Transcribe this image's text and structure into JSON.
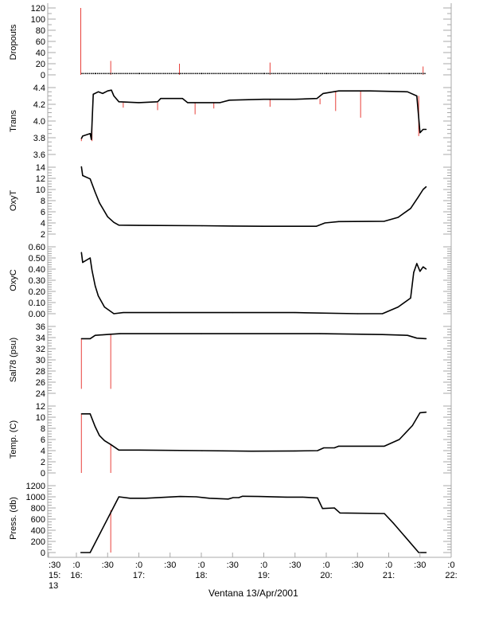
{
  "chart_data": {
    "type": "line",
    "title": "",
    "xlabel": "Ventana 13/Apr/2001",
    "x_units": "hours (decimal, 13/Apr/2001)",
    "xlim": [
      15.5,
      22.0
    ],
    "x_ticks": [
      {
        "t": 15.5,
        "minute": ":30",
        "hour": "15:",
        "day": "13"
      },
      {
        "t": 16.0,
        "minute": ":0",
        "hour": "16:"
      },
      {
        "t": 16.5,
        "minute": ":30"
      },
      {
        "t": 17.0,
        "minute": ":0",
        "hour": "17:"
      },
      {
        "t": 17.5,
        "minute": ":30"
      },
      {
        "t": 18.0,
        "minute": ":0",
        "hour": "18:"
      },
      {
        "t": 18.5,
        "minute": ":30"
      },
      {
        "t": 19.0,
        "minute": ":0",
        "hour": "19:"
      },
      {
        "t": 19.5,
        "minute": ":30"
      },
      {
        "t": 20.0,
        "minute": ":0",
        "hour": "20:"
      },
      {
        "t": 20.5,
        "minute": ":30"
      },
      {
        "t": 21.0,
        "minute": ":0",
        "hour": "21:"
      },
      {
        "t": 21.5,
        "minute": ":30"
      },
      {
        "t": 22.0,
        "minute": ":0",
        "hour": "22:"
      }
    ],
    "colors": {
      "data": "#000000",
      "flagged": "#e8403a",
      "axis": "#a8a8a8"
    },
    "panels": [
      {
        "id": "dropouts",
        "ylabel": "Dropouts",
        "ylim": [
          0,
          120
        ],
        "ticks": [
          0,
          20,
          40,
          60,
          80,
          100,
          120
        ],
        "tick_labels": [
          "0",
          "20",
          "40",
          "60",
          "80",
          "100",
          "120"
        ],
        "minor": 10,
        "series": [
          [
            16.08,
            2
          ],
          [
            16.3,
            2
          ],
          [
            17.0,
            2
          ],
          [
            18.0,
            2
          ],
          [
            19.0,
            2
          ],
          [
            20.0,
            2
          ],
          [
            21.0,
            2
          ],
          [
            21.6,
            2
          ]
        ],
        "spikes": [
          [
            16.07,
            0,
            120
          ],
          [
            16.55,
            0,
            25
          ],
          [
            17.65,
            0,
            20
          ],
          [
            19.1,
            0,
            22
          ],
          [
            21.55,
            0,
            15
          ]
        ]
      },
      {
        "id": "trans",
        "ylabel": "Trans",
        "ylim": [
          3.6,
          4.4
        ],
        "ticks": [
          3.6,
          3.8,
          4.0,
          4.2,
          4.4
        ],
        "tick_labels": [
          "3.6",
          "3.8",
          "4.0",
          "4.2",
          "4.4"
        ],
        "minor": 0.05,
        "series": [
          [
            16.08,
            3.79
          ],
          [
            16.1,
            3.82
          ],
          [
            16.22,
            3.85
          ],
          [
            16.24,
            3.78
          ],
          [
            16.27,
            4.32
          ],
          [
            16.35,
            4.35
          ],
          [
            16.42,
            4.33
          ],
          [
            16.5,
            4.36
          ],
          [
            16.56,
            4.37
          ],
          [
            16.6,
            4.3
          ],
          [
            16.68,
            4.23
          ],
          [
            17.0,
            4.22
          ],
          [
            17.3,
            4.23
          ],
          [
            17.35,
            4.27
          ],
          [
            17.7,
            4.27
          ],
          [
            17.78,
            4.22
          ],
          [
            18.3,
            4.22
          ],
          [
            18.45,
            4.25
          ],
          [
            19.0,
            4.26
          ],
          [
            19.5,
            4.26
          ],
          [
            19.85,
            4.27
          ],
          [
            19.95,
            4.33
          ],
          [
            20.2,
            4.36
          ],
          [
            20.7,
            4.36
          ],
          [
            21.3,
            4.35
          ],
          [
            21.45,
            4.3
          ],
          [
            21.5,
            3.86
          ],
          [
            21.55,
            3.9
          ],
          [
            21.6,
            3.9
          ]
        ],
        "spikes": [
          [
            16.08,
            3.76,
            3.8
          ],
          [
            16.25,
            3.76,
            4.0
          ],
          [
            16.75,
            4.16,
            4.22
          ],
          [
            17.3,
            4.13,
            4.22
          ],
          [
            17.9,
            4.08,
            4.22
          ],
          [
            18.2,
            4.15,
            4.22
          ],
          [
            19.1,
            4.17,
            4.26
          ],
          [
            19.9,
            4.2,
            4.27
          ],
          [
            20.15,
            4.12,
            4.36
          ],
          [
            20.55,
            4.04,
            4.36
          ],
          [
            21.48,
            3.82,
            4.3
          ]
        ]
      },
      {
        "id": "oxyt",
        "ylabel": "OxyT",
        "ylim": [
          2,
          14
        ],
        "ticks": [
          2,
          4,
          6,
          8,
          10,
          12,
          14
        ],
        "tick_labels": [
          "2",
          "4",
          "6",
          "8",
          "10",
          "12",
          "14"
        ],
        "minor": 0.5,
        "series": [
          [
            16.08,
            14.1
          ],
          [
            16.1,
            12.5
          ],
          [
            16.22,
            11.9
          ],
          [
            16.3,
            9.5
          ],
          [
            16.37,
            7.6
          ],
          [
            16.5,
            5.1
          ],
          [
            16.6,
            4.1
          ],
          [
            16.68,
            3.6
          ],
          [
            17.0,
            3.55
          ],
          [
            18.0,
            3.5
          ],
          [
            18.5,
            3.45
          ],
          [
            19.0,
            3.4
          ],
          [
            19.84,
            3.4
          ],
          [
            19.98,
            4.0
          ],
          [
            20.2,
            4.25
          ],
          [
            20.93,
            4.3
          ],
          [
            21.15,
            5.0
          ],
          [
            21.35,
            6.6
          ],
          [
            21.47,
            8.6
          ],
          [
            21.55,
            10.0
          ],
          [
            21.6,
            10.5
          ]
        ],
        "spikes": []
      },
      {
        "id": "oxyc",
        "ylabel": "OxyC",
        "ylim": [
          0,
          0.6
        ],
        "ticks": [
          0,
          0.1,
          0.2,
          0.3,
          0.4,
          0.5,
          0.6
        ],
        "tick_labels": [
          "0.00",
          "0.10",
          "0.20",
          "0.30",
          "0.40",
          "0.50",
          "0.60"
        ],
        "minor": 0.02,
        "series": [
          [
            16.08,
            0.55
          ],
          [
            16.1,
            0.46
          ],
          [
            16.22,
            0.5
          ],
          [
            16.25,
            0.39
          ],
          [
            16.3,
            0.25
          ],
          [
            16.35,
            0.16
          ],
          [
            16.45,
            0.06
          ],
          [
            16.6,
            0.0
          ],
          [
            16.75,
            0.01
          ],
          [
            17.5,
            0.01
          ],
          [
            18.5,
            0.01
          ],
          [
            19.5,
            0.01
          ],
          [
            20.5,
            0.0
          ],
          [
            20.9,
            0.0
          ],
          [
            21.15,
            0.06
          ],
          [
            21.35,
            0.14
          ],
          [
            21.4,
            0.37
          ],
          [
            21.45,
            0.45
          ],
          [
            21.5,
            0.38
          ],
          [
            21.55,
            0.42
          ],
          [
            21.6,
            0.4
          ]
        ],
        "spikes": []
      },
      {
        "id": "sal78",
        "ylabel": "Sal78 (psu)",
        "ylim": [
          24,
          36
        ],
        "ticks": [
          24,
          26,
          28,
          30,
          32,
          34,
          36
        ],
        "tick_labels": [
          "24",
          "26",
          "28",
          "30",
          "32",
          "34",
          "36"
        ],
        "minor": 0.5,
        "series": [
          [
            16.08,
            33.8
          ],
          [
            16.22,
            33.8
          ],
          [
            16.3,
            34.4
          ],
          [
            16.55,
            34.6
          ],
          [
            16.7,
            34.7
          ],
          [
            18.0,
            34.7
          ],
          [
            19.9,
            34.7
          ],
          [
            20.9,
            34.55
          ],
          [
            21.3,
            34.4
          ],
          [
            21.45,
            33.9
          ],
          [
            21.6,
            33.8
          ]
        ],
        "spikes": [
          [
            16.08,
            24.8,
            33.8
          ],
          [
            16.55,
            24.8,
            34.6
          ]
        ]
      },
      {
        "id": "temp",
        "ylabel": "Temp. (C)",
        "ylim": [
          0,
          12
        ],
        "ticks": [
          0,
          2,
          4,
          6,
          8,
          10,
          12
        ],
        "tick_labels": [
          "0",
          "2",
          "4",
          "6",
          "8",
          "10",
          "12"
        ],
        "minor": 0.5,
        "series": [
          [
            16.08,
            10.6
          ],
          [
            16.22,
            10.6
          ],
          [
            16.3,
            8.3
          ],
          [
            16.37,
            6.7
          ],
          [
            16.45,
            5.8
          ],
          [
            16.55,
            5.1
          ],
          [
            16.68,
            4.1
          ],
          [
            17.0,
            4.1
          ],
          [
            18.0,
            4.0
          ],
          [
            18.8,
            3.9
          ],
          [
            19.5,
            3.95
          ],
          [
            19.86,
            4.0
          ],
          [
            19.96,
            4.5
          ],
          [
            20.13,
            4.5
          ],
          [
            20.2,
            4.8
          ],
          [
            20.93,
            4.8
          ],
          [
            21.17,
            6.0
          ],
          [
            21.38,
            8.5
          ],
          [
            21.5,
            10.8
          ],
          [
            21.6,
            10.9
          ]
        ],
        "spikes": [
          [
            16.08,
            0,
            10.6
          ],
          [
            16.55,
            0,
            5.1
          ]
        ]
      },
      {
        "id": "press",
        "ylabel": "Press. (db)",
        "ylim": [
          0,
          1200
        ],
        "ticks": [
          0,
          200,
          400,
          600,
          800,
          1000,
          1200
        ],
        "tick_labels": [
          "0",
          "200",
          "400",
          "600",
          "800",
          "1000",
          "1200"
        ],
        "minor": 50,
        "series": [
          [
            16.07,
            0
          ],
          [
            16.22,
            0
          ],
          [
            16.68,
            1000
          ],
          [
            16.86,
            975
          ],
          [
            17.11,
            975
          ],
          [
            17.66,
            1005
          ],
          [
            17.92,
            1000
          ],
          [
            18.13,
            975
          ],
          [
            18.43,
            960
          ],
          [
            18.51,
            985
          ],
          [
            18.6,
            985
          ],
          [
            18.66,
            1010
          ],
          [
            18.93,
            1005
          ],
          [
            19.36,
            995
          ],
          [
            19.62,
            995
          ],
          [
            19.86,
            980
          ],
          [
            19.94,
            790
          ],
          [
            20.13,
            800
          ],
          [
            20.22,
            710
          ],
          [
            20.93,
            700
          ],
          [
            21.08,
            520
          ],
          [
            21.48,
            0
          ],
          [
            21.6,
            0
          ]
        ],
        "spikes": [
          [
            16.55,
            0,
            760
          ]
        ]
      }
    ]
  }
}
